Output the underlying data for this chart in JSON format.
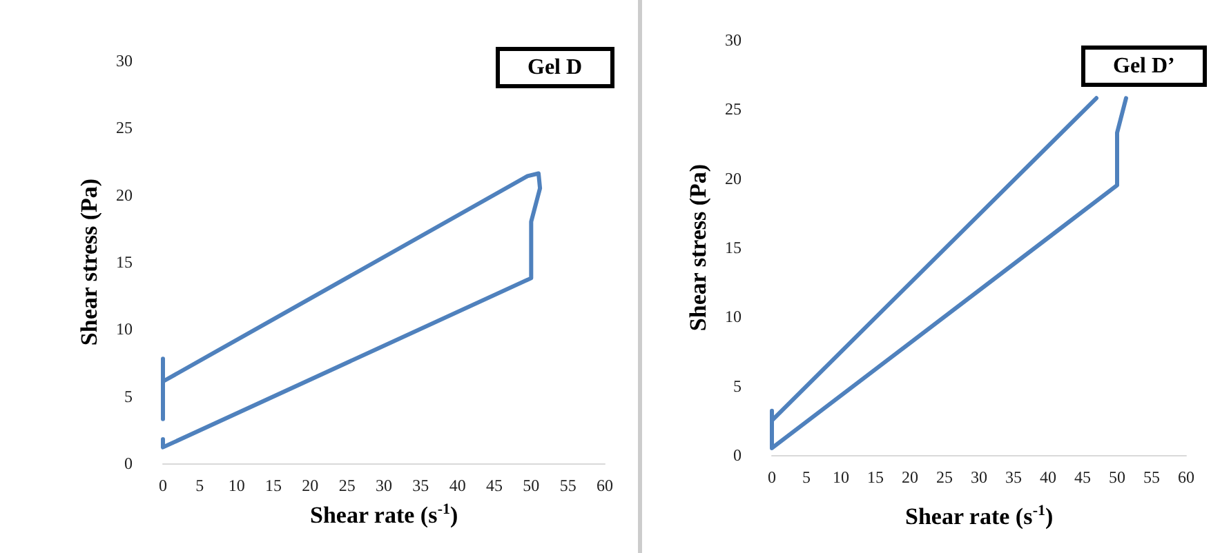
{
  "chart_data": [
    {
      "type": "line",
      "title": "Gel D",
      "xlabel": "Shear rate (s$^{-1}$)",
      "ylabel": "Shear stress (Pa)",
      "xlim": [
        0,
        60
      ],
      "ylim": [
        0,
        30
      ],
      "xticks": [
        0,
        5,
        10,
        15,
        20,
        25,
        30,
        35,
        40,
        45,
        50,
        55,
        60
      ],
      "yticks": [
        0,
        5,
        10,
        15,
        20,
        25,
        30
      ],
      "grid": false,
      "marker": "none",
      "line_style": "solid",
      "series": [
        {
          "color": "#4f81bd",
          "x": [
            0,
            0,
            0,
            49.5,
            51,
            51.2,
            50,
            50,
            0,
            0
          ],
          "values": [
            3.3,
            7.8,
            6.1,
            21.4,
            21.6,
            20.5,
            18,
            13.8,
            1.2,
            1.8
          ]
        }
      ]
    },
    {
      "type": "line",
      "title": "Gel D’",
      "xlabel": "Shear rate (s$^{-1}$)",
      "ylabel": "Shear stress (Pa)",
      "xlim": [
        0,
        60
      ],
      "ylim": [
        0,
        30
      ],
      "xticks": [
        0,
        5,
        10,
        15,
        20,
        25,
        30,
        35,
        40,
        45,
        50,
        55,
        60
      ],
      "yticks": [
        0,
        5,
        10,
        15,
        20,
        25,
        30
      ],
      "grid": false,
      "marker": "none",
      "line_style": "solid",
      "series": [
        {
          "color": "#4f81bd",
          "x": [
            47,
            0,
            0,
            0,
            50,
            50,
            51.3
          ],
          "values": [
            25.8,
            2.5,
            3.2,
            0.5,
            19.5,
            23.3,
            25.8
          ]
        }
      ]
    }
  ]
}
